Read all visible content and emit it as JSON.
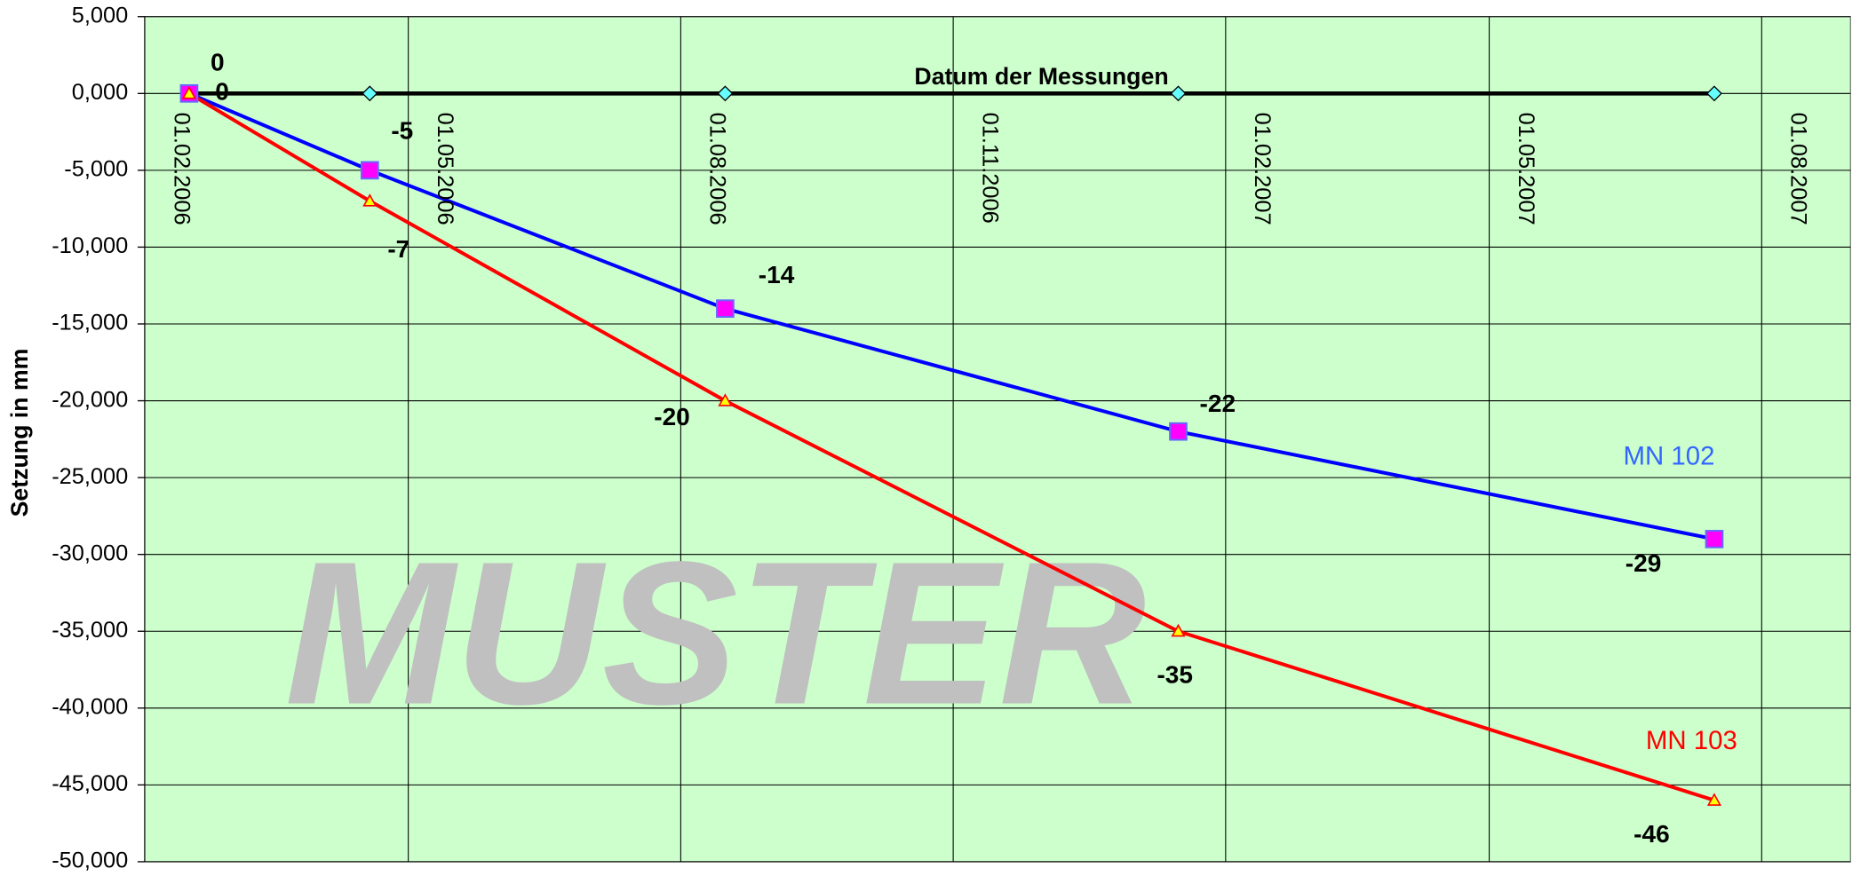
{
  "chart_data": {
    "type": "line",
    "x_label": "Datum der Messungen",
    "y_label": "Setzung in mm",
    "watermark": "MUSTER",
    "x": [
      "2006-02-16",
      "2006-04-18",
      "2006-08-16",
      "2007-01-16",
      "2007-07-16"
    ],
    "xlim": [
      "2006-02-01",
      "2007-08-31"
    ],
    "xticks": [
      {
        "value": "2006-02-01",
        "label": "01.02.2006"
      },
      {
        "value": "2006-05-01",
        "label": "01.05.2006"
      },
      {
        "value": "2006-08-01",
        "label": "01.08.2006"
      },
      {
        "value": "2006-11-01",
        "label": "01.11.2006"
      },
      {
        "value": "2007-02-01",
        "label": "01.02.2007"
      },
      {
        "value": "2007-05-01",
        "label": "01.05.2007"
      },
      {
        "value": "2007-08-01",
        "label": "01.08.2007"
      }
    ],
    "ylim": [
      -50,
      5
    ],
    "yticks": [
      {
        "value": 5,
        "label": "5,000"
      },
      {
        "value": 0,
        "label": "0,000"
      },
      {
        "value": -5,
        "label": "-5,000"
      },
      {
        "value": -10,
        "label": "-10,000"
      },
      {
        "value": -15,
        "label": "-15,000"
      },
      {
        "value": -20,
        "label": "-20,000"
      },
      {
        "value": -25,
        "label": "-25,000"
      },
      {
        "value": -30,
        "label": "-30,000"
      },
      {
        "value": -35,
        "label": "-35,000"
      },
      {
        "value": -40,
        "label": "-40,000"
      },
      {
        "value": -45,
        "label": "-45,000"
      },
      {
        "value": -50,
        "label": "-50,000"
      }
    ],
    "grid": true,
    "series": [
      {
        "values": [
          0,
          0,
          0,
          0,
          0
        ],
        "color": "#000000",
        "marker_color": "#66ffff"
      },
      {
        "name": "MN 102",
        "color": "#0000ff",
        "label_color": "#3366ff",
        "marker_color": "#ff00ff",
        "values": [
          0,
          -5,
          -14,
          -22,
          -29
        ]
      },
      {
        "name": "MN 103",
        "color": "#ff0000",
        "label_color": "#ff0000",
        "marker_color": "#ffff00",
        "values": [
          0,
          -7,
          -20,
          -35,
          -46
        ]
      }
    ]
  }
}
